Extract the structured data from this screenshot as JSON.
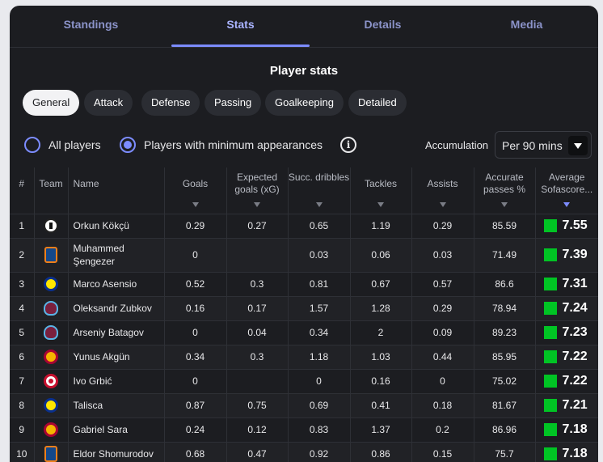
{
  "tabs": [
    {
      "label": "Standings",
      "active": false
    },
    {
      "label": "Stats",
      "active": true
    },
    {
      "label": "Details",
      "active": false
    },
    {
      "label": "Media",
      "active": false
    }
  ],
  "section_title": "Player stats",
  "filters": [
    "General",
    "Attack",
    "Defense",
    "Passing",
    "Goalkeeping",
    "Detailed"
  ],
  "active_filter": "General",
  "radios": {
    "all_players": "All players",
    "min_appearances": "Players with minimum appearances",
    "selected": "min_appearances"
  },
  "info_icon": "info-icon",
  "accumulation": {
    "label": "Accumulation",
    "value": "Per 90 mins"
  },
  "columns": {
    "rank": "#",
    "team": "Team",
    "name": "Name",
    "goals": "Goals",
    "xg": "Expected goals (xG)",
    "dribbles": "Succ. dribbles",
    "tackles": "Tackles",
    "assists": "Assists",
    "passes": "Accurate passes %",
    "rating": "Average Sofascore..."
  },
  "rating_color": "#00c424",
  "accent_color": "#7c8cff",
  "rows": [
    {
      "rank": "1",
      "team_logo": "bjk",
      "name": "Orkun Kökçü",
      "goals": "0.29",
      "xg": "0.27",
      "dribbles": "0.65",
      "tackles": "1.19",
      "assists": "0.29",
      "passes": "85.59",
      "rating": "7.55"
    },
    {
      "rank": "2",
      "team_logo": "basak",
      "name": "Muhammed Şengezer",
      "goals": "0",
      "xg": "",
      "dribbles": "0.03",
      "tackles": "0.06",
      "assists": "0.03",
      "passes": "71.49",
      "rating": "7.39"
    },
    {
      "rank": "3",
      "team_logo": "fb",
      "name": "Marco Asensio",
      "goals": "0.52",
      "xg": "0.3",
      "dribbles": "0.81",
      "tackles": "0.67",
      "assists": "0.57",
      "passes": "86.6",
      "rating": "7.31"
    },
    {
      "rank": "4",
      "team_logo": "ts",
      "name": "Oleksandr Zubkov",
      "goals": "0.16",
      "xg": "0.17",
      "dribbles": "1.57",
      "tackles": "1.28",
      "assists": "0.29",
      "passes": "78.94",
      "rating": "7.24"
    },
    {
      "rank": "5",
      "team_logo": "ts",
      "name": "Arseniy Batagov",
      "goals": "0",
      "xg": "0.04",
      "dribbles": "0.34",
      "tackles": "2",
      "assists": "0.09",
      "passes": "89.23",
      "rating": "7.23"
    },
    {
      "rank": "6",
      "team_logo": "gs",
      "name": "Yunus Akgün",
      "goals": "0.34",
      "xg": "0.3",
      "dribbles": "1.18",
      "tackles": "1.03",
      "assists": "0.44",
      "passes": "85.95",
      "rating": "7.22"
    },
    {
      "rank": "7",
      "team_logo": "kas",
      "name": "Ivo Grbić",
      "goals": "0",
      "xg": "",
      "dribbles": "0",
      "tackles": "0.16",
      "assists": "0",
      "passes": "75.02",
      "rating": "7.22"
    },
    {
      "rank": "8",
      "team_logo": "fb",
      "name": "Talisca",
      "goals": "0.87",
      "xg": "0.75",
      "dribbles": "0.69",
      "tackles": "0.41",
      "assists": "0.18",
      "passes": "81.67",
      "rating": "7.21"
    },
    {
      "rank": "9",
      "team_logo": "gs",
      "name": "Gabriel Sara",
      "goals": "0.24",
      "xg": "0.12",
      "dribbles": "0.83",
      "tackles": "1.37",
      "assists": "0.2",
      "passes": "86.96",
      "rating": "7.18"
    },
    {
      "rank": "10",
      "team_logo": "basak",
      "name": "Eldor Shomurodov",
      "goals": "0.68",
      "xg": "0.47",
      "dribbles": "0.92",
      "tackles": "0.86",
      "assists": "0.15",
      "passes": "75.7",
      "rating": "7.18"
    }
  ]
}
